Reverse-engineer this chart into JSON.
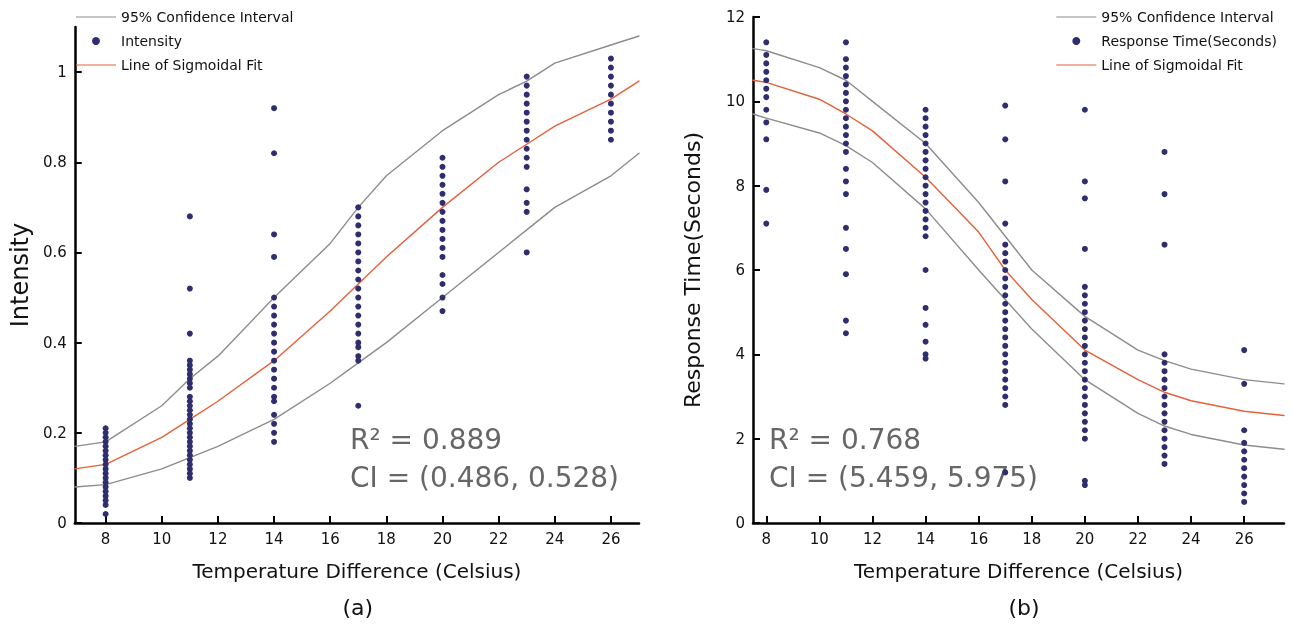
{
  "chart_data": [
    {
      "type": "scatter",
      "xlabel": "Temperature Difference (Celsius)",
      "ylabel": "Intensity",
      "xlim": [
        6.9,
        27
      ],
      "xticks": [
        8,
        10,
        12,
        14,
        16,
        18,
        20,
        22,
        24,
        26
      ],
      "ylim": [
        0,
        1.1
      ],
      "yticks": [
        0,
        0.2,
        0.4,
        0.6,
        0.8,
        1
      ],
      "grid": false,
      "legend": "top left",
      "annotations": [
        "R² = 0.889",
        "CI = (0.486, 0.528)",
        "(a)"
      ],
      "series": [
        {
          "type": "line",
          "name": "95% Confidence Interval",
          "color": "#8c8c8c",
          "x": [
            6.9,
            8,
            10,
            11,
            12,
            14,
            16,
            17,
            18,
            20,
            22,
            23,
            24,
            26,
            27
          ],
          "values": [
            0.17,
            0.18,
            0.26,
            0.32,
            0.37,
            0.5,
            0.62,
            0.7,
            0.77,
            0.87,
            0.95,
            0.98,
            1.02,
            1.06,
            1.08
          ]
        },
        {
          "name": "Intensity",
          "color": "#2e2d6e",
          "marker": "circle",
          "x": [
            8,
            8,
            8,
            8,
            8,
            8,
            8,
            8,
            8,
            8,
            8,
            8,
            8,
            8,
            8,
            8,
            8,
            8,
            8,
            11,
            11,
            11,
            11,
            11,
            11,
            11,
            11,
            11,
            11,
            11,
            11,
            11,
            11,
            11,
            11,
            11,
            11,
            11,
            11,
            11,
            11,
            11,
            11,
            11,
            11,
            11,
            11,
            11,
            14,
            14,
            14,
            14,
            14,
            14,
            14,
            14,
            14,
            14,
            14,
            14,
            14,
            14,
            14,
            14,
            14,
            14,
            14,
            14,
            14,
            17,
            17,
            17,
            17,
            17,
            17,
            17,
            17,
            17,
            17,
            17,
            17,
            17,
            17,
            17,
            17,
            17,
            17,
            17,
            17,
            20,
            20,
            20,
            20,
            20,
            20,
            20,
            20,
            20,
            20,
            20,
            20,
            20,
            20,
            20,
            20,
            23,
            23,
            23,
            23,
            23,
            23,
            23,
            23,
            23,
            23,
            23,
            23,
            23,
            23,
            23,
            26,
            26,
            26,
            26,
            26,
            26,
            26,
            26,
            26,
            26
          ],
          "values": [
            0.21,
            0.2,
            0.19,
            0.18,
            0.17,
            0.16,
            0.15,
            0.14,
            0.13,
            0.12,
            0.11,
            0.1,
            0.09,
            0.08,
            0.07,
            0.06,
            0.05,
            0.04,
            0.02,
            0.68,
            0.52,
            0.42,
            0.36,
            0.35,
            0.34,
            0.33,
            0.32,
            0.31,
            0.3,
            0.28,
            0.27,
            0.26,
            0.25,
            0.24,
            0.23,
            0.22,
            0.21,
            0.2,
            0.19,
            0.18,
            0.17,
            0.16,
            0.15,
            0.14,
            0.13,
            0.12,
            0.11,
            0.1,
            0.92,
            0.82,
            0.64,
            0.59,
            0.5,
            0.48,
            0.46,
            0.44,
            0.42,
            0.4,
            0.38,
            0.36,
            0.34,
            0.32,
            0.3,
            0.28,
            0.27,
            0.24,
            0.22,
            0.2,
            0.18,
            0.7,
            0.68,
            0.66,
            0.64,
            0.62,
            0.6,
            0.58,
            0.56,
            0.54,
            0.52,
            0.5,
            0.48,
            0.46,
            0.44,
            0.42,
            0.4,
            0.39,
            0.37,
            0.36,
            0.26,
            0.81,
            0.79,
            0.77,
            0.75,
            0.73,
            0.71,
            0.69,
            0.67,
            0.65,
            0.63,
            0.61,
            0.59,
            0.55,
            0.53,
            0.5,
            0.47,
            0.99,
            0.97,
            0.95,
            0.93,
            0.91,
            0.89,
            0.87,
            0.85,
            0.83,
            0.81,
            0.79,
            0.74,
            0.71,
            0.69,
            0.6,
            1.03,
            1.01,
            0.99,
            0.97,
            0.95,
            0.93,
            0.91,
            0.89,
            0.87,
            0.85
          ]
        },
        {
          "type": "line",
          "name": "Line of Sigmoidal Fit",
          "color": "#e5603a",
          "x": [
            6.9,
            8,
            10,
            11,
            12,
            14,
            16,
            17,
            18,
            20,
            22,
            23,
            24,
            26,
            27
          ],
          "values": [
            0.12,
            0.13,
            0.19,
            0.23,
            0.27,
            0.36,
            0.47,
            0.53,
            0.59,
            0.7,
            0.8,
            0.84,
            0.88,
            0.94,
            0.98
          ]
        },
        {
          "type": "line",
          "color": "#8c8c8c",
          "x": [
            6.9,
            8,
            10,
            11,
            12,
            14,
            16,
            17,
            18,
            20,
            22,
            23,
            24,
            26,
            27
          ],
          "values": [
            0.08,
            0.085,
            0.12,
            0.145,
            0.17,
            0.23,
            0.31,
            0.355,
            0.4,
            0.5,
            0.6,
            0.65,
            0.7,
            0.77,
            0.82
          ]
        }
      ]
    },
    {
      "type": "scatter",
      "xlabel": "Temperature Difference (Celsius)",
      "ylabel": "Response Time(Seconds)",
      "xlim": [
        7.5,
        27.5
      ],
      "xticks": [
        8,
        10,
        12,
        14,
        16,
        18,
        20,
        22,
        24,
        26
      ],
      "ylim": [
        0,
        12
      ],
      "yticks": [
        0,
        2,
        4,
        6,
        8,
        10,
        12
      ],
      "grid": false,
      "legend": "top right",
      "annotations": [
        "R² = 0.768",
        "CI = (5.459, 5.975)",
        "(b)"
      ],
      "series": [
        {
          "type": "line",
          "name": "95% Confidence Interval",
          "color": "#8c8c8c",
          "x": [
            7.5,
            8,
            10,
            11,
            12,
            14,
            16,
            17,
            18,
            20,
            22,
            23,
            24,
            26,
            27.5
          ],
          "values": [
            11.25,
            11.2,
            10.8,
            10.5,
            10,
            9,
            7.6,
            6.8,
            6,
            4.9,
            4.1,
            3.85,
            3.65,
            3.4,
            3.3
          ]
        },
        {
          "name": "Response Time(Seconds)",
          "color": "#2e2d6e",
          "marker": "circle",
          "x": [
            8,
            8,
            8,
            8,
            8,
            8,
            8,
            8,
            8,
            8,
            8,
            8,
            11,
            11,
            11,
            11,
            11,
            11,
            11,
            11,
            11,
            11,
            11,
            11,
            11,
            11,
            11,
            11,
            11,
            11,
            11,
            11,
            11,
            14,
            14,
            14,
            14,
            14,
            14,
            14,
            14,
            14,
            14,
            14,
            14,
            14,
            14,
            14,
            14,
            14,
            14,
            14,
            14,
            14,
            14,
            17,
            17,
            17,
            17,
            17,
            17,
            17,
            17,
            17,
            17,
            17,
            17,
            17,
            17,
            17,
            17,
            17,
            17,
            17,
            17,
            17,
            17,
            17,
            17,
            17,
            20,
            20,
            20,
            20,
            20,
            20,
            20,
            20,
            20,
            20,
            20,
            20,
            20,
            20,
            20,
            20,
            20,
            20,
            20,
            20,
            20,
            20,
            20,
            20,
            20,
            23,
            23,
            23,
            23,
            23,
            23,
            23,
            23,
            23,
            23,
            23,
            23,
            23,
            23,
            23,
            23,
            23,
            26,
            26,
            26,
            26,
            26,
            26,
            26,
            26,
            26,
            26,
            26
          ],
          "values": [
            11.4,
            11.1,
            10.9,
            10.7,
            10.5,
            10.3,
            10.1,
            9.8,
            9.5,
            9.1,
            7.9,
            7.1,
            11.4,
            11,
            10.8,
            10.6,
            10.4,
            10.2,
            10,
            9.8,
            9.6,
            9.4,
            9.2,
            9,
            8.8,
            8.4,
            8.1,
            7.8,
            7,
            6.5,
            5.9,
            4.8,
            4.5,
            9.8,
            9.6,
            9.4,
            9.2,
            9,
            8.8,
            8.6,
            8.4,
            8.2,
            8,
            7.8,
            7.6,
            7.4,
            7.2,
            7,
            6.8,
            6,
            5.1,
            4.7,
            4.3,
            4,
            3.9,
            9.9,
            9.1,
            8.1,
            7.1,
            6.6,
            6.4,
            6.2,
            6,
            5.8,
            5.6,
            5.4,
            5.2,
            5,
            4.8,
            4.6,
            4.4,
            4.2,
            4,
            3.8,
            3.6,
            3.4,
            3.2,
            3,
            2.8,
            1.2,
            9.8,
            8.1,
            7.7,
            6.5,
            5.6,
            5.4,
            5.2,
            5,
            4.8,
            4.6,
            4.4,
            4.2,
            4,
            3.8,
            3.6,
            3.4,
            3.2,
            3,
            2.8,
            2.6,
            2.4,
            2.2,
            2,
            1,
            0.9,
            8.8,
            7.8,
            6.6,
            4,
            3.8,
            3.6,
            3.4,
            3.2,
            3,
            2.8,
            2.6,
            2.4,
            2.2,
            2,
            1.8,
            1.6,
            1.4,
            4.1,
            3.3,
            2.2,
            1.9,
            1.7,
            1.5,
            1.3,
            1.1,
            0.9,
            0.7,
            0.5
          ]
        },
        {
          "type": "line",
          "name": "Line of Sigmoidal Fit",
          "color": "#e5603a",
          "x": [
            7.5,
            8,
            10,
            11,
            12,
            14,
            16,
            17,
            18,
            20,
            22,
            23,
            24,
            26,
            27.5
          ],
          "values": [
            10.5,
            10.45,
            10.05,
            9.7,
            9.3,
            8.2,
            6.9,
            6,
            5.3,
            4.1,
            3.4,
            3.1,
            2.9,
            2.65,
            2.55
          ]
        },
        {
          "type": "line",
          "color": "#8c8c8c",
          "x": [
            7.5,
            8,
            10,
            11,
            12,
            14,
            16,
            17,
            18,
            20,
            22,
            23,
            24,
            26,
            27.5
          ],
          "values": [
            9.7,
            9.6,
            9.25,
            8.95,
            8.55,
            7.45,
            6,
            5.3,
            4.6,
            3.4,
            2.6,
            2.3,
            2.1,
            1.85,
            1.75
          ]
        }
      ]
    }
  ]
}
